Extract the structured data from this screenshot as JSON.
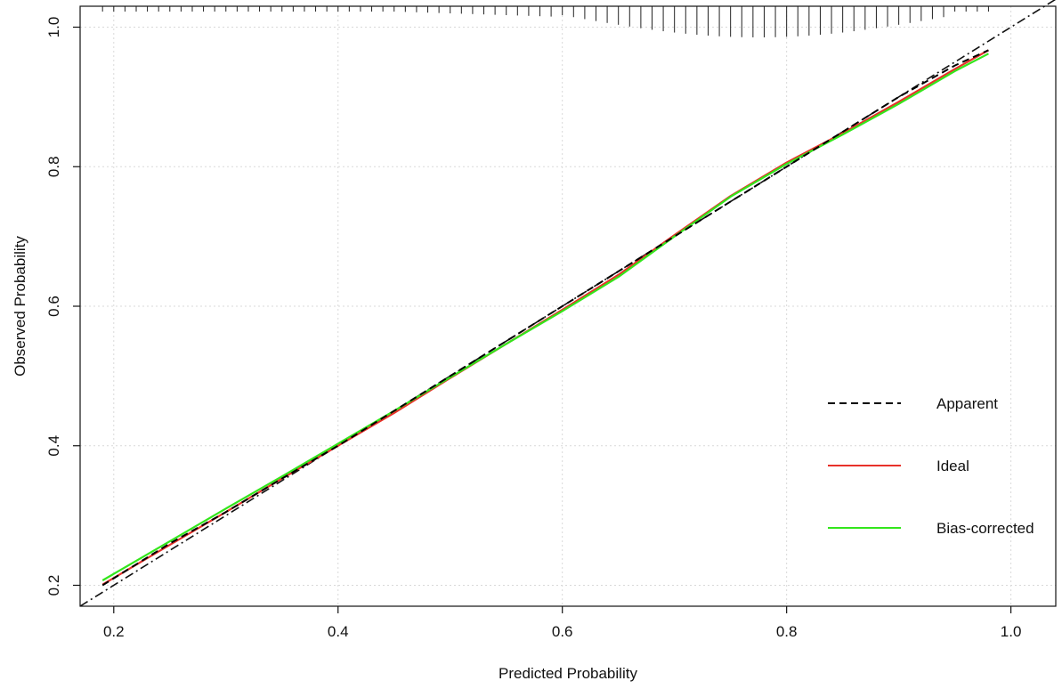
{
  "chart_data": {
    "type": "line",
    "title": "",
    "xlabel": "Predicted Probability",
    "ylabel": "Observed Probability",
    "xlim": [
      0.17,
      1.04
    ],
    "ylim": [
      0.17,
      1.03
    ],
    "xticks": [
      "0.2",
      "0.4",
      "0.6",
      "0.8",
      "1.0"
    ],
    "yticks": [
      "0.2",
      "0.4",
      "0.6",
      "0.8",
      "1.0"
    ],
    "grid": true,
    "legend_position": "bottom-right",
    "reference_line": {
      "style": "dash-dot",
      "from": [
        0.17,
        0.17
      ],
      "to": [
        1.04,
        1.04
      ]
    },
    "rug": {
      "position": "top",
      "x_start": 0.19,
      "x_end": 0.98,
      "step": 0.01,
      "note_len_relative": "longer between 0.6 and 0.95"
    },
    "series": [
      {
        "name": "Apparent",
        "color": "#000000",
        "style": "dashed",
        "x": [
          0.19,
          0.25,
          0.3,
          0.35,
          0.4,
          0.45,
          0.5,
          0.55,
          0.6,
          0.65,
          0.7,
          0.75,
          0.8,
          0.85,
          0.9,
          0.95,
          0.98
        ],
        "y": [
          0.2,
          0.26,
          0.305,
          0.353,
          0.4,
          0.45,
          0.5,
          0.55,
          0.6,
          0.65,
          0.7,
          0.75,
          0.8,
          0.85,
          0.9,
          0.945,
          0.967
        ]
      },
      {
        "name": "Ideal",
        "color": "#e8312a",
        "style": "solid",
        "x": [
          0.19,
          0.25,
          0.3,
          0.35,
          0.4,
          0.45,
          0.5,
          0.55,
          0.6,
          0.65,
          0.7,
          0.75,
          0.8,
          0.85,
          0.9,
          0.95,
          0.98
        ],
        "y": [
          0.201,
          0.258,
          0.305,
          0.353,
          0.4,
          0.447,
          0.497,
          0.546,
          0.595,
          0.645,
          0.702,
          0.758,
          0.806,
          0.848,
          0.893,
          0.94,
          0.967
        ]
      },
      {
        "name": "Bias-corrected",
        "color": "#33e61c",
        "style": "solid",
        "x": [
          0.19,
          0.25,
          0.3,
          0.35,
          0.4,
          0.45,
          0.5,
          0.55,
          0.6,
          0.65,
          0.7,
          0.75,
          0.8,
          0.85,
          0.9,
          0.95,
          0.98
        ],
        "y": [
          0.207,
          0.263,
          0.31,
          0.356,
          0.403,
          0.45,
          0.498,
          0.546,
          0.593,
          0.642,
          0.7,
          0.757,
          0.804,
          0.846,
          0.89,
          0.937,
          0.962
        ]
      }
    ]
  }
}
